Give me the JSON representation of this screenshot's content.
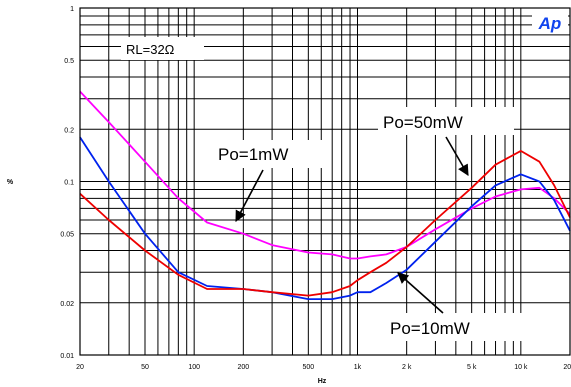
{
  "chart_data": {
    "type": "line",
    "title": "",
    "xlabel": "Hz",
    "ylabel": "%",
    "x_scale": "log",
    "y_scale": "log",
    "xlim": [
      20,
      20000
    ],
    "ylim": [
      0.01,
      1
    ],
    "grid": true,
    "x_ticks": [
      {
        "value": 20,
        "label": "20"
      },
      {
        "value": 50,
        "label": "50"
      },
      {
        "value": 100,
        "label": "100"
      },
      {
        "value": 200,
        "label": "200"
      },
      {
        "value": 500,
        "label": "500"
      },
      {
        "value": 1000,
        "label": "1k"
      },
      {
        "value": 2000,
        "label": "2 k"
      },
      {
        "value": 5000,
        "label": "5 k"
      },
      {
        "value": 10000,
        "label": "10 k"
      },
      {
        "value": 20000,
        "label": "20 k"
      }
    ],
    "y_ticks": [
      {
        "value": 0.01,
        "label": "0.01"
      },
      {
        "value": 0.02,
        "label": "0.02"
      },
      {
        "value": 0.05,
        "label": "0.05"
      },
      {
        "value": 0.1,
        "label": "0.1"
      },
      {
        "value": 0.2,
        "label": "0.2"
      },
      {
        "value": 0.5,
        "label": "0.5"
      },
      {
        "value": 1,
        "label": "1"
      }
    ],
    "condition_label": "RL=32Ω",
    "logo_text": "Ap",
    "series": [
      {
        "name": "Po=1mW",
        "color": "#ff00ff",
        "x": [
          20,
          30,
          50,
          80,
          120,
          200,
          300,
          500,
          700,
          900,
          1000,
          1200,
          1500,
          2000,
          3000,
          5000,
          7000,
          10000,
          13000,
          16000,
          20000
        ],
        "y": [
          0.33,
          0.22,
          0.13,
          0.08,
          0.058,
          0.05,
          0.043,
          0.039,
          0.038,
          0.036,
          0.036,
          0.037,
          0.038,
          0.042,
          0.053,
          0.07,
          0.082,
          0.09,
          0.092,
          0.08,
          0.065
        ]
      },
      {
        "name": "Po=10mW",
        "color": "#0022ee",
        "x": [
          20,
          30,
          50,
          80,
          120,
          200,
          300,
          500,
          700,
          900,
          1000,
          1200,
          1500,
          2000,
          3000,
          5000,
          7000,
          10000,
          13000,
          16000,
          20000
        ],
        "y": [
          0.18,
          0.1,
          0.05,
          0.03,
          0.025,
          0.024,
          0.023,
          0.021,
          0.021,
          0.022,
          0.023,
          0.023,
          0.026,
          0.031,
          0.045,
          0.072,
          0.095,
          0.11,
          0.1,
          0.078,
          0.052
        ]
      },
      {
        "name": "Po=50mW",
        "color": "#ee0000",
        "x": [
          20,
          30,
          50,
          80,
          120,
          200,
          300,
          500,
          700,
          900,
          1000,
          1200,
          1500,
          2000,
          3000,
          5000,
          7000,
          10000,
          13000,
          16000,
          20000
        ],
        "y": [
          0.085,
          0.06,
          0.04,
          0.029,
          0.024,
          0.024,
          0.023,
          0.022,
          0.023,
          0.025,
          0.027,
          0.03,
          0.034,
          0.042,
          0.06,
          0.092,
          0.125,
          0.15,
          0.13,
          0.095,
          0.062
        ]
      }
    ],
    "annotations": [
      {
        "text": "Po=1mW",
        "series": "Po=1mW",
        "arrow_to": {
          "x": 120,
          "y": 0.06
        }
      },
      {
        "text": "Po=50mW",
        "series": "Po=50mW",
        "arrow_to": {
          "x": 4500,
          "y": 0.09
        }
      },
      {
        "text": "Po=10mW",
        "series": "Po=10mW",
        "arrow_to": {
          "x": 2200,
          "y": 0.034
        }
      }
    ]
  }
}
